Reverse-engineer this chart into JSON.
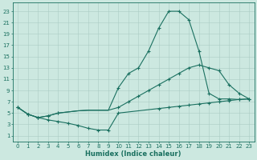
{
  "bg_color": "#cce8e0",
  "grid_color": "#aaccc4",
  "line_color": "#1a7060",
  "xlabel": "Humidex (Indice chaleur)",
  "ylabel_ticks": [
    1,
    3,
    5,
    7,
    9,
    11,
    13,
    15,
    17,
    19,
    21,
    23
  ],
  "xticks": [
    0,
    1,
    2,
    3,
    4,
    5,
    6,
    7,
    8,
    9,
    10,
    11,
    12,
    13,
    14,
    15,
    16,
    17,
    18,
    19,
    20,
    21,
    22,
    23
  ],
  "xlim": [
    -0.5,
    23.5
  ],
  "ylim": [
    0,
    24.5
  ],
  "lines": [
    {
      "x": [
        0,
        1,
        2,
        3,
        4,
        5,
        6,
        7,
        8,
        9,
        10,
        11,
        12,
        13,
        14,
        15,
        16,
        17,
        18,
        19,
        20,
        21,
        22,
        23
      ],
      "y": [
        6,
        4.8,
        4.2,
        3.8,
        3.5,
        3.2,
        2.8,
        2.3,
        2.0,
        2.0,
        5.0,
        5.2,
        5.4,
        5.6,
        5.8,
        6.0,
        6.2,
        6.4,
        6.6,
        6.8,
        7.0,
        7.2,
        7.4,
        7.5
      ]
    },
    {
      "x": [
        0,
        1,
        2,
        3,
        4,
        5,
        6,
        7,
        8,
        9,
        10,
        11,
        12,
        13,
        14,
        15,
        16,
        17,
        18,
        19,
        20,
        21,
        22,
        23
      ],
      "y": [
        6,
        4.8,
        4.2,
        4.5,
        5.0,
        5.2,
        5.4,
        5.5,
        5.5,
        5.5,
        6.0,
        7.0,
        8.0,
        9.0,
        10.0,
        11.0,
        12.0,
        13.0,
        13.5,
        13.0,
        12.5,
        10.0,
        8.5,
        7.5
      ]
    },
    {
      "x": [
        0,
        1,
        2,
        3,
        4,
        5,
        6,
        7,
        8,
        9,
        10,
        11,
        12,
        13,
        14,
        15,
        16,
        17,
        18,
        19,
        20,
        21,
        22,
        23
      ],
      "y": [
        6,
        4.8,
        4.2,
        4.5,
        5.0,
        5.2,
        5.4,
        5.5,
        5.5,
        5.5,
        9.5,
        12.0,
        13.0,
        16.0,
        20.0,
        23.0,
        23.0,
        21.5,
        16.0,
        8.5,
        7.5,
        7.5,
        7.4,
        7.5
      ]
    }
  ],
  "markers": [
    {
      "x": [
        0,
        1,
        2,
        3,
        4,
        5,
        6,
        7,
        8,
        9,
        10,
        14,
        15,
        16,
        17,
        18,
        19,
        20,
        21,
        22,
        23
      ],
      "y": [
        6,
        4.8,
        4.2,
        3.8,
        3.5,
        3.2,
        2.8,
        2.3,
        2.0,
        2.0,
        5.0,
        5.8,
        6.0,
        6.2,
        6.4,
        6.6,
        6.8,
        7.0,
        7.2,
        7.4,
        7.5
      ]
    },
    {
      "x": [
        0,
        1,
        2,
        3,
        4,
        10,
        11,
        12,
        13,
        14,
        15,
        16,
        17,
        18,
        19,
        20,
        21,
        22,
        23
      ],
      "y": [
        6,
        4.8,
        4.2,
        4.5,
        5.0,
        6.0,
        7.0,
        8.0,
        9.0,
        10.0,
        11.0,
        12.0,
        13.0,
        13.5,
        13.0,
        12.5,
        10.0,
        8.5,
        7.5
      ]
    },
    {
      "x": [
        0,
        1,
        2,
        3,
        4,
        10,
        11,
        12,
        13,
        14,
        15,
        16,
        17,
        18,
        19,
        20,
        21,
        22,
        23
      ],
      "y": [
        6,
        4.8,
        4.2,
        4.5,
        5.0,
        9.5,
        12.0,
        13.0,
        16.0,
        20.0,
        23.0,
        23.0,
        21.5,
        16.0,
        8.5,
        7.5,
        7.5,
        7.4,
        7.5
      ]
    }
  ]
}
